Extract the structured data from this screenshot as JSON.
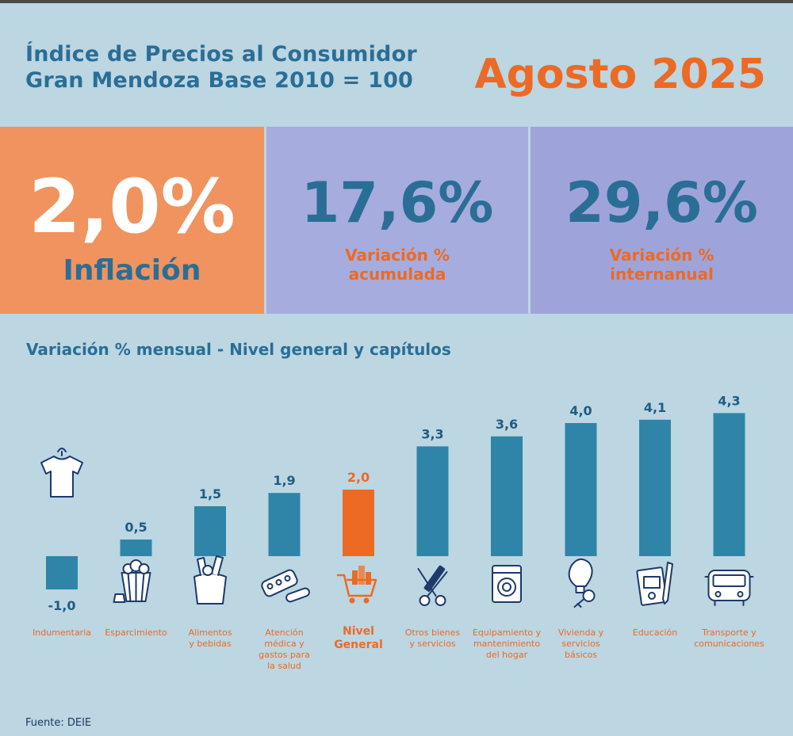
{
  "header": {
    "title_line1": "Índice de Precios al Consumidor",
    "title_line2": "Gran Mendoza Base 2010 = 100",
    "period": "Agosto 2025"
  },
  "kpis": [
    {
      "value": "2,0%",
      "label": "Inflación"
    },
    {
      "value": "17,6%",
      "label_line1": "Variación %",
      "label_line2": "acumulada"
    },
    {
      "value": "29,6%",
      "label_line1": "Variación %",
      "label_line2": "internanual"
    }
  ],
  "colors": {
    "bar": "#2f85a8",
    "highlight": "#ec6a24",
    "label_blue": "#1f5c82",
    "category": "#ec6a24",
    "icon_stroke": "#1d3a6b"
  },
  "chart_data": {
    "type": "bar",
    "title": "Variación % mensual - Nivel general y capítulos",
    "categories": [
      [
        "Indumentaria"
      ],
      [
        "Esparcimiento"
      ],
      [
        "Alimentos",
        "y bebidas"
      ],
      [
        "Atención",
        "médica y",
        "gastos para",
        "la salud"
      ],
      [
        "Nivel",
        "General"
      ],
      [
        "Otros bienes",
        "y servicios"
      ],
      [
        "Equipamiento y",
        "mantenimiento",
        "del hogar"
      ],
      [
        "Vivienda y",
        "servicios",
        "básicos"
      ],
      [
        "Educación"
      ],
      [
        "Transporte y",
        "comunicaciones"
      ]
    ],
    "values": [
      -1.0,
      0.5,
      1.5,
      1.9,
      2.0,
      3.3,
      3.6,
      4.0,
      4.1,
      4.3
    ],
    "value_labels": [
      "-1,0",
      "0,5",
      "1,5",
      "1,9",
      "2,0",
      "3,3",
      "3,6",
      "4,0",
      "4,1",
      "4,3"
    ],
    "highlight_index": 4,
    "icons": [
      "tshirt-icon",
      "popcorn-icon",
      "grocery-bag-icon",
      "pills-icon",
      "shopping-cart-icon",
      "scissors-comb-icon",
      "washing-machine-icon",
      "bulb-key-icon",
      "notebook-pencil-icon",
      "bus-icon"
    ],
    "ylim": [
      -1.0,
      4.3
    ],
    "grid": false
  },
  "footer": {
    "source": "Fuente: DEIE"
  }
}
